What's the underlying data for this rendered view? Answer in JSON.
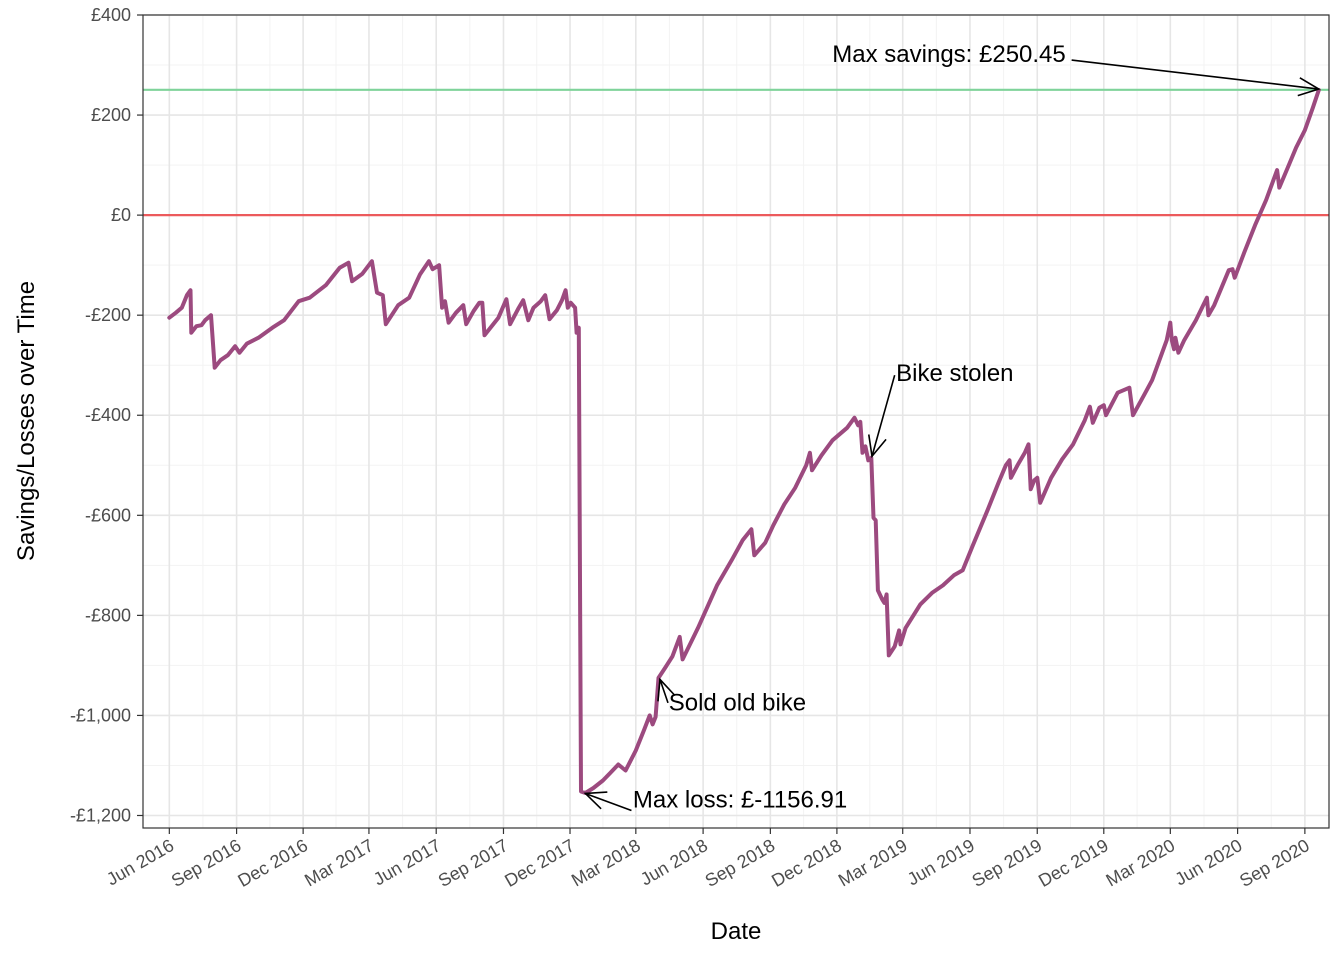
{
  "colors": {
    "series": "#9c4a7f",
    "max_line": "#7fd39a",
    "zero_line": "#ec5a5c",
    "grid_major": "#e6e6e6",
    "grid_minor": "#f3f3f3",
    "panel_border": "#333333",
    "tick_text": "#4d4d4d"
  },
  "chart_data": {
    "type": "line",
    "title": "",
    "xlabel": "Date",
    "ylabel": "Savings/Losses over Time",
    "x_type": "date",
    "xlim": [
      "2016-04-26",
      "2020-10-04"
    ],
    "ylim": [
      -1225,
      400
    ],
    "grid": true,
    "x_ticks": [
      {
        "date": "2016-06-01",
        "label": "Jun 2016"
      },
      {
        "date": "2016-09-01",
        "label": "Sep 2016"
      },
      {
        "date": "2016-12-01",
        "label": "Dec 2016"
      },
      {
        "date": "2017-03-01",
        "label": "Mar 2017"
      },
      {
        "date": "2017-06-01",
        "label": "Jun 2017"
      },
      {
        "date": "2017-09-01",
        "label": "Sep 2017"
      },
      {
        "date": "2017-12-01",
        "label": "Dec 2017"
      },
      {
        "date": "2018-03-01",
        "label": "Mar 2018"
      },
      {
        "date": "2018-06-01",
        "label": "Jun 2018"
      },
      {
        "date": "2018-09-01",
        "label": "Sep 2018"
      },
      {
        "date": "2018-12-01",
        "label": "Dec 2018"
      },
      {
        "date": "2019-03-01",
        "label": "Mar 2019"
      },
      {
        "date": "2019-06-01",
        "label": "Jun 2019"
      },
      {
        "date": "2019-09-01",
        "label": "Sep 2019"
      },
      {
        "date": "2019-12-01",
        "label": "Dec 2019"
      },
      {
        "date": "2020-03-01",
        "label": "Mar 2020"
      },
      {
        "date": "2020-06-01",
        "label": "Jun 2020"
      },
      {
        "date": "2020-09-01",
        "label": "Sep 2020"
      }
    ],
    "y_ticks": [
      {
        "value": 400,
        "label": "£400"
      },
      {
        "value": 200,
        "label": "£200"
      },
      {
        "value": 0,
        "label": "£0"
      },
      {
        "value": -200,
        "label": "-£200"
      },
      {
        "value": -400,
        "label": "-£400"
      },
      {
        "value": -600,
        "label": "-£600"
      },
      {
        "value": -800,
        "label": "-£800"
      },
      {
        "value": -1000,
        "label": "-£1,000"
      },
      {
        "value": -1200,
        "label": "-£1,200"
      }
    ],
    "reference_lines": [
      {
        "y": 250.45,
        "color": "max_line"
      },
      {
        "y": 0,
        "color": "zero_line"
      }
    ],
    "series": [
      {
        "points": [
          [
            "2016-06-01",
            -205
          ],
          [
            "2016-06-10",
            -195
          ],
          [
            "2016-06-18",
            -185
          ],
          [
            "2016-06-25",
            -160
          ],
          [
            "2016-06-30",
            -150
          ],
          [
            "2016-07-01",
            -235
          ],
          [
            "2016-07-08",
            -222
          ],
          [
            "2016-07-15",
            -220
          ],
          [
            "2016-07-20",
            -210
          ],
          [
            "2016-07-28",
            -200
          ],
          [
            "2016-08-02",
            -305
          ],
          [
            "2016-08-10",
            -290
          ],
          [
            "2016-08-20",
            -280
          ],
          [
            "2016-08-30",
            -262
          ],
          [
            "2016-09-05",
            -275
          ],
          [
            "2016-09-15",
            -257
          ],
          [
            "2016-10-01",
            -245
          ],
          [
            "2016-10-20",
            -225
          ],
          [
            "2016-11-05",
            -210
          ],
          [
            "2016-11-25",
            -172
          ],
          [
            "2016-12-10",
            -165
          ],
          [
            "2017-01-01",
            -140
          ],
          [
            "2017-01-20",
            -105
          ],
          [
            "2017-02-01",
            -95
          ],
          [
            "2017-02-06",
            -132
          ],
          [
            "2017-02-20",
            -117
          ],
          [
            "2017-03-05",
            -92
          ],
          [
            "2017-03-12",
            -155
          ],
          [
            "2017-03-20",
            -160
          ],
          [
            "2017-03-24",
            -218
          ],
          [
            "2017-04-10",
            -180
          ],
          [
            "2017-04-25",
            -165
          ],
          [
            "2017-05-10",
            -118
          ],
          [
            "2017-05-22",
            -92
          ],
          [
            "2017-05-27",
            -108
          ],
          [
            "2017-06-05",
            -100
          ],
          [
            "2017-06-09",
            -185
          ],
          [
            "2017-06-13",
            -172
          ],
          [
            "2017-06-18",
            -215
          ],
          [
            "2017-06-28",
            -195
          ],
          [
            "2017-07-08",
            -180
          ],
          [
            "2017-07-12",
            -218
          ],
          [
            "2017-07-22",
            -192
          ],
          [
            "2017-07-30",
            -175
          ],
          [
            "2017-08-03",
            -175
          ],
          [
            "2017-08-06",
            -240
          ],
          [
            "2017-08-25",
            -205
          ],
          [
            "2017-09-05",
            -168
          ],
          [
            "2017-09-10",
            -218
          ],
          [
            "2017-09-22",
            -185
          ],
          [
            "2017-09-28",
            -170
          ],
          [
            "2017-10-05",
            -210
          ],
          [
            "2017-10-12",
            -185
          ],
          [
            "2017-10-22",
            -172
          ],
          [
            "2017-10-28",
            -160
          ],
          [
            "2017-11-03",
            -208
          ],
          [
            "2017-11-13",
            -190
          ],
          [
            "2017-11-20",
            -170
          ],
          [
            "2017-11-25",
            -150
          ],
          [
            "2017-11-28",
            -185
          ],
          [
            "2017-12-02",
            -175
          ],
          [
            "2017-12-08",
            -185
          ],
          [
            "2017-12-10",
            -235
          ],
          [
            "2017-12-13",
            -225
          ],
          [
            "2017-12-16",
            -1152
          ],
          [
            "2017-12-22",
            -1155
          ],
          [
            "2018-01-02",
            -1145
          ],
          [
            "2018-01-15",
            -1130
          ],
          [
            "2018-01-25",
            -1115
          ],
          [
            "2018-02-05",
            -1098
          ],
          [
            "2018-02-15",
            -1110
          ],
          [
            "2018-03-01",
            -1070
          ],
          [
            "2018-03-12",
            -1030
          ],
          [
            "2018-03-20",
            -1000
          ],
          [
            "2018-03-24",
            -1018
          ],
          [
            "2018-03-28",
            -1003
          ],
          [
            "2018-04-01",
            -925
          ],
          [
            "2018-04-10",
            -905
          ],
          [
            "2018-04-20",
            -882
          ],
          [
            "2018-04-30",
            -843
          ],
          [
            "2018-05-04",
            -888
          ],
          [
            "2018-05-25",
            -825
          ],
          [
            "2018-06-20",
            -740
          ],
          [
            "2018-07-10",
            -690
          ],
          [
            "2018-07-25",
            -650
          ],
          [
            "2018-08-06",
            -628
          ],
          [
            "2018-08-10",
            -680
          ],
          [
            "2018-08-25",
            -655
          ],
          [
            "2018-09-05",
            -620
          ],
          [
            "2018-09-20",
            -578
          ],
          [
            "2018-10-05",
            -545
          ],
          [
            "2018-10-20",
            -500
          ],
          [
            "2018-10-25",
            -475
          ],
          [
            "2018-10-28",
            -510
          ],
          [
            "2018-11-10",
            -480
          ],
          [
            "2018-11-25",
            -450
          ],
          [
            "2018-12-15",
            -425
          ],
          [
            "2018-12-25",
            -405
          ],
          [
            "2018-12-30",
            -420
          ],
          [
            "2019-01-02",
            -413
          ],
          [
            "2019-01-05",
            -475
          ],
          [
            "2019-01-09",
            -462
          ],
          [
            "2019-01-13",
            -490
          ],
          [
            "2019-01-17",
            -485
          ],
          [
            "2019-01-20",
            -605
          ],
          [
            "2019-01-23",
            -610
          ],
          [
            "2019-01-26",
            -750
          ],
          [
            "2019-02-01",
            -768
          ],
          [
            "2019-02-04",
            -775
          ],
          [
            "2019-02-07",
            -758
          ],
          [
            "2019-02-10",
            -880
          ],
          [
            "2019-02-18",
            -862
          ],
          [
            "2019-02-24",
            -830
          ],
          [
            "2019-02-26",
            -858
          ],
          [
            "2019-03-05",
            -825
          ],
          [
            "2019-03-25",
            -778
          ],
          [
            "2019-04-10",
            -755
          ],
          [
            "2019-04-25",
            -740
          ],
          [
            "2019-05-10",
            -720
          ],
          [
            "2019-05-22",
            -710
          ],
          [
            "2019-06-05",
            -660
          ],
          [
            "2019-06-25",
            -590
          ],
          [
            "2019-07-10",
            -535
          ],
          [
            "2019-07-20",
            -500
          ],
          [
            "2019-07-25",
            -490
          ],
          [
            "2019-07-27",
            -525
          ],
          [
            "2019-08-05",
            -500
          ],
          [
            "2019-08-15",
            -475
          ],
          [
            "2019-08-20",
            -458
          ],
          [
            "2019-08-23",
            -548
          ],
          [
            "2019-08-28",
            -530
          ],
          [
            "2019-09-01",
            -525
          ],
          [
            "2019-09-05",
            -575
          ],
          [
            "2019-09-20",
            -525
          ],
          [
            "2019-10-05",
            -488
          ],
          [
            "2019-10-20",
            -458
          ],
          [
            "2019-11-05",
            -410
          ],
          [
            "2019-11-12",
            -383
          ],
          [
            "2019-11-16",
            -415
          ],
          [
            "2019-11-25",
            -385
          ],
          [
            "2019-12-01",
            -380
          ],
          [
            "2019-12-04",
            -400
          ],
          [
            "2019-12-20",
            -355
          ],
          [
            "2020-01-05",
            -345
          ],
          [
            "2020-01-10",
            -400
          ],
          [
            "2020-01-25",
            -360
          ],
          [
            "2020-02-05",
            -330
          ],
          [
            "2020-02-25",
            -250
          ],
          [
            "2020-03-01",
            -215
          ],
          [
            "2020-03-03",
            -250
          ],
          [
            "2020-03-06",
            -268
          ],
          [
            "2020-03-08",
            -245
          ],
          [
            "2020-03-12",
            -275
          ],
          [
            "2020-03-20",
            -250
          ],
          [
            "2020-04-05",
            -210
          ],
          [
            "2020-04-15",
            -180
          ],
          [
            "2020-04-20",
            -165
          ],
          [
            "2020-04-22",
            -200
          ],
          [
            "2020-04-30",
            -180
          ],
          [
            "2020-05-10",
            -145
          ],
          [
            "2020-05-20",
            -110
          ],
          [
            "2020-05-25",
            -108
          ],
          [
            "2020-05-28",
            -125
          ],
          [
            "2020-06-10",
            -75
          ],
          [
            "2020-06-25",
            -20
          ],
          [
            "2020-07-10",
            30
          ],
          [
            "2020-07-25",
            90
          ],
          [
            "2020-07-28",
            55
          ],
          [
            "2020-08-10",
            100
          ],
          [
            "2020-08-20",
            135
          ],
          [
            "2020-09-01",
            170
          ],
          [
            "2020-09-12",
            215
          ],
          [
            "2020-09-20",
            250
          ]
        ]
      }
    ],
    "annotations": [
      {
        "text": "Max savings: £250.45",
        "target": [
          "2020-09-20",
          250.45
        ],
        "label_pos": [
          "2019-10-10",
          306
        ],
        "anchor": "end",
        "tail": [
          "2019-10-18",
          310
        ],
        "head": [
          "2020-09-20",
          252
        ]
      },
      {
        "text": "Bike stolen",
        "target": [
          "2019-01-18",
          -482
        ],
        "label_pos": [
          "2019-02-20",
          -332
        ],
        "anchor": "start",
        "tail": [
          "2019-02-18",
          -320
        ],
        "head": [
          "2019-01-18",
          -482
        ]
      },
      {
        "text": "Sold old bike",
        "target": [
          "2018-04-03",
          -928
        ],
        "label_pos": [
          "2018-04-15",
          -990
        ],
        "anchor": "start",
        "tail": [
          "2018-04-14",
          -975
        ],
        "head": [
          "2018-04-03",
          -928
        ]
      },
      {
        "text": "Max loss: £-1156.91",
        "target": [
          "2017-12-22",
          -1156.91
        ],
        "label_pos": [
          "2018-02-25",
          -1184
        ],
        "anchor": "start",
        "tail": [
          "2018-02-23",
          -1190
        ],
        "head": [
          "2017-12-22",
          -1156
        ]
      }
    ]
  }
}
